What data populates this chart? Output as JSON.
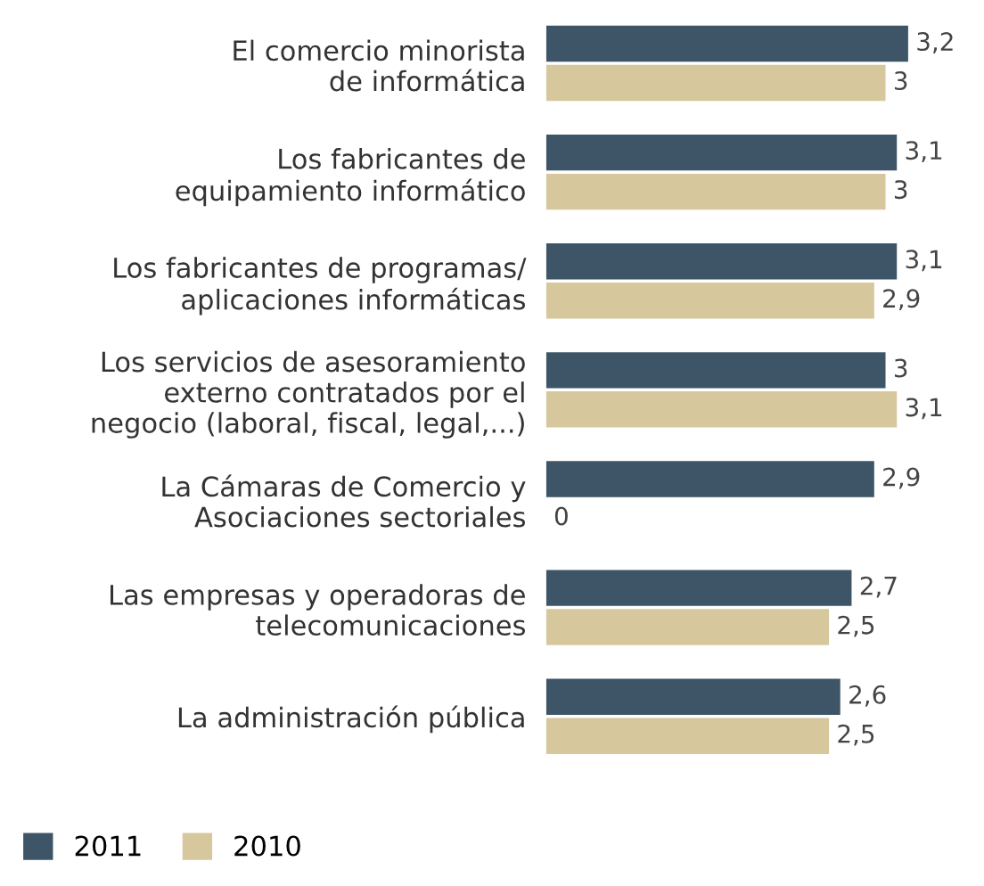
{
  "chart_data": {
    "type": "bar",
    "orientation": "horizontal",
    "categories": [
      "El comercio minorista\nde informática",
      "Los fabricantes de\nequipamiento informático",
      "Los fabricantes de programas/\naplicaciones informáticas",
      "Los servicios de asesoramiento\nexterno contratados por el\nnegocio (laboral, fiscal, legal,...)",
      "La Cámaras de Comercio y\nAsociaciones sectoriales",
      "Las empresas y operadoras de\ntelecomunicaciones",
      "La administración pública"
    ],
    "series": [
      {
        "name": "2011",
        "color": "#3d5566",
        "values": [
          3.2,
          3.1,
          3.1,
          3,
          2.9,
          2.7,
          2.6
        ],
        "value_labels": [
          "3,2",
          "3,1",
          "3,1",
          "3",
          "2,9",
          "2,7",
          "2,6"
        ]
      },
      {
        "name": "2010",
        "color": "#d6c79c",
        "values": [
          3,
          3,
          2.9,
          3.1,
          0,
          2.5,
          2.5
        ],
        "value_labels": [
          "3",
          "3",
          "2,9",
          "3,1",
          "0",
          "2,5",
          "2,5"
        ]
      }
    ],
    "legend": "bottom left",
    "grid": false
  }
}
